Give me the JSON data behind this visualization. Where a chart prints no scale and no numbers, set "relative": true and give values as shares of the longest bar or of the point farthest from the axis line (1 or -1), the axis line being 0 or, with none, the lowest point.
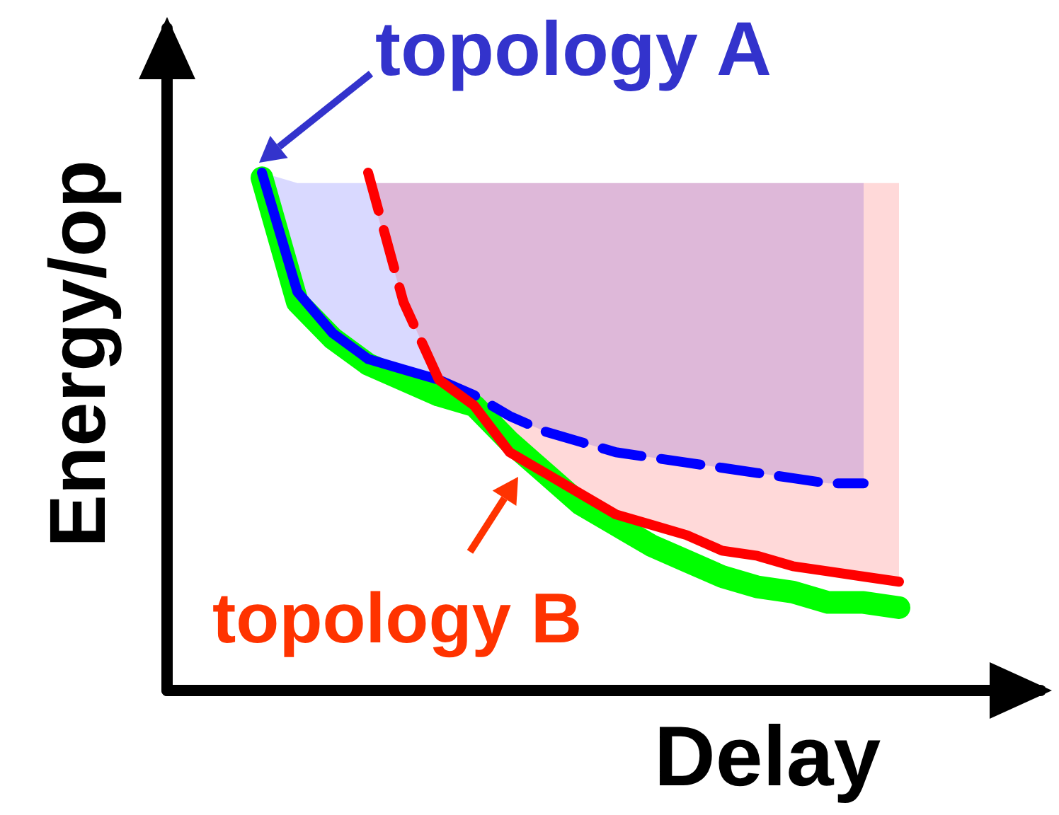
{
  "chart_data": {
    "type": "line",
    "relative": true,
    "xlabel": "Delay",
    "ylabel": "Energy/op",
    "categories": [
      null,
      null,
      null,
      null,
      null,
      null,
      null,
      null,
      null,
      null,
      null,
      null,
      null,
      null,
      null,
      null,
      null,
      null,
      null
    ],
    "series": [
      {
        "color": "#0000ff",
        "line_style": "solid",
        "values": [
          1.0,
          0.77,
          0.69,
          0.64,
          0.62,
          0.6,
          null,
          null,
          null,
          null,
          null,
          null,
          null,
          null,
          null,
          null,
          null,
          null,
          null
        ],
        "lower": [
          1.0,
          0.77,
          0.69,
          0.64,
          0.62,
          0.6,
          null,
          null,
          null,
          null,
          null,
          null,
          null,
          null,
          null,
          null,
          null,
          null,
          null
        ],
        "upper": [
          1.0,
          0.98,
          0.98,
          0.98,
          0.98,
          0.98,
          null,
          null,
          null,
          null,
          null,
          null,
          null,
          null,
          null,
          null,
          null,
          null,
          null
        ]
      },
      {
        "color": "#0000ff",
        "line_style": "dashed",
        "values": [
          null,
          null,
          null,
          null,
          null,
          0.6,
          0.57,
          0.53,
          0.5,
          0.48,
          0.46,
          0.45,
          0.44,
          0.43,
          0.42,
          0.41,
          0.4,
          0.4,
          null
        ],
        "lower": [
          null,
          null,
          null,
          null,
          null,
          0.6,
          0.57,
          0.53,
          0.5,
          0.48,
          0.46,
          0.45,
          0.44,
          0.43,
          0.42,
          0.41,
          0.4,
          0.4,
          null
        ],
        "upper": [
          null,
          null,
          null,
          null,
          null,
          0.98,
          0.98,
          0.98,
          0.98,
          0.98,
          0.98,
          0.98,
          0.98,
          0.98,
          0.98,
          0.98,
          0.98,
          0.98,
          null
        ]
      },
      {
        "color": "#ff0000",
        "line_style": "dashed",
        "values": [
          null,
          null,
          null,
          1.0,
          0.75,
          0.6,
          null,
          null,
          null,
          null,
          null,
          null,
          null,
          null,
          null,
          null,
          null,
          null,
          null
        ],
        "lower": [
          null,
          null,
          null,
          0.98,
          0.75,
          0.6,
          null,
          null,
          null,
          null,
          null,
          null,
          null,
          null,
          null,
          null,
          null,
          null,
          null
        ],
        "upper": [
          null,
          null,
          null,
          0.98,
          0.98,
          0.98,
          null,
          null,
          null,
          null,
          null,
          null,
          null,
          null,
          null,
          null,
          null,
          null,
          null
        ]
      },
      {
        "color": "#ff0000",
        "line_style": "solid",
        "values": [
          null,
          null,
          null,
          null,
          null,
          0.6,
          0.55,
          0.46,
          0.42,
          0.38,
          0.34,
          0.32,
          0.3,
          0.27,
          0.26,
          0.24,
          0.23,
          0.22,
          0.21
        ],
        "lower": [
          null,
          null,
          null,
          null,
          null,
          0.6,
          0.55,
          0.46,
          0.42,
          0.38,
          0.34,
          0.32,
          0.3,
          0.27,
          0.26,
          0.24,
          0.23,
          0.22,
          0.21
        ],
        "upper": [
          null,
          null,
          null,
          null,
          null,
          0.98,
          0.98,
          0.98,
          0.98,
          0.98,
          0.98,
          0.98,
          0.98,
          0.98,
          0.98,
          0.98,
          0.98,
          0.98,
          0.98
        ]
      },
      {
        "color": "#00ff00",
        "line_style": "solid",
        "values": [
          0.99,
          0.75,
          0.68,
          0.63,
          0.6,
          0.57,
          0.55,
          0.48,
          0.42,
          0.36,
          0.32,
          0.28,
          0.25,
          0.22,
          0.2,
          0.19,
          0.17,
          0.17,
          0.16
        ]
      }
    ],
    "annotations": [
      "topology A",
      "topology B"
    ],
    "grid": false,
    "marker": "none"
  }
}
